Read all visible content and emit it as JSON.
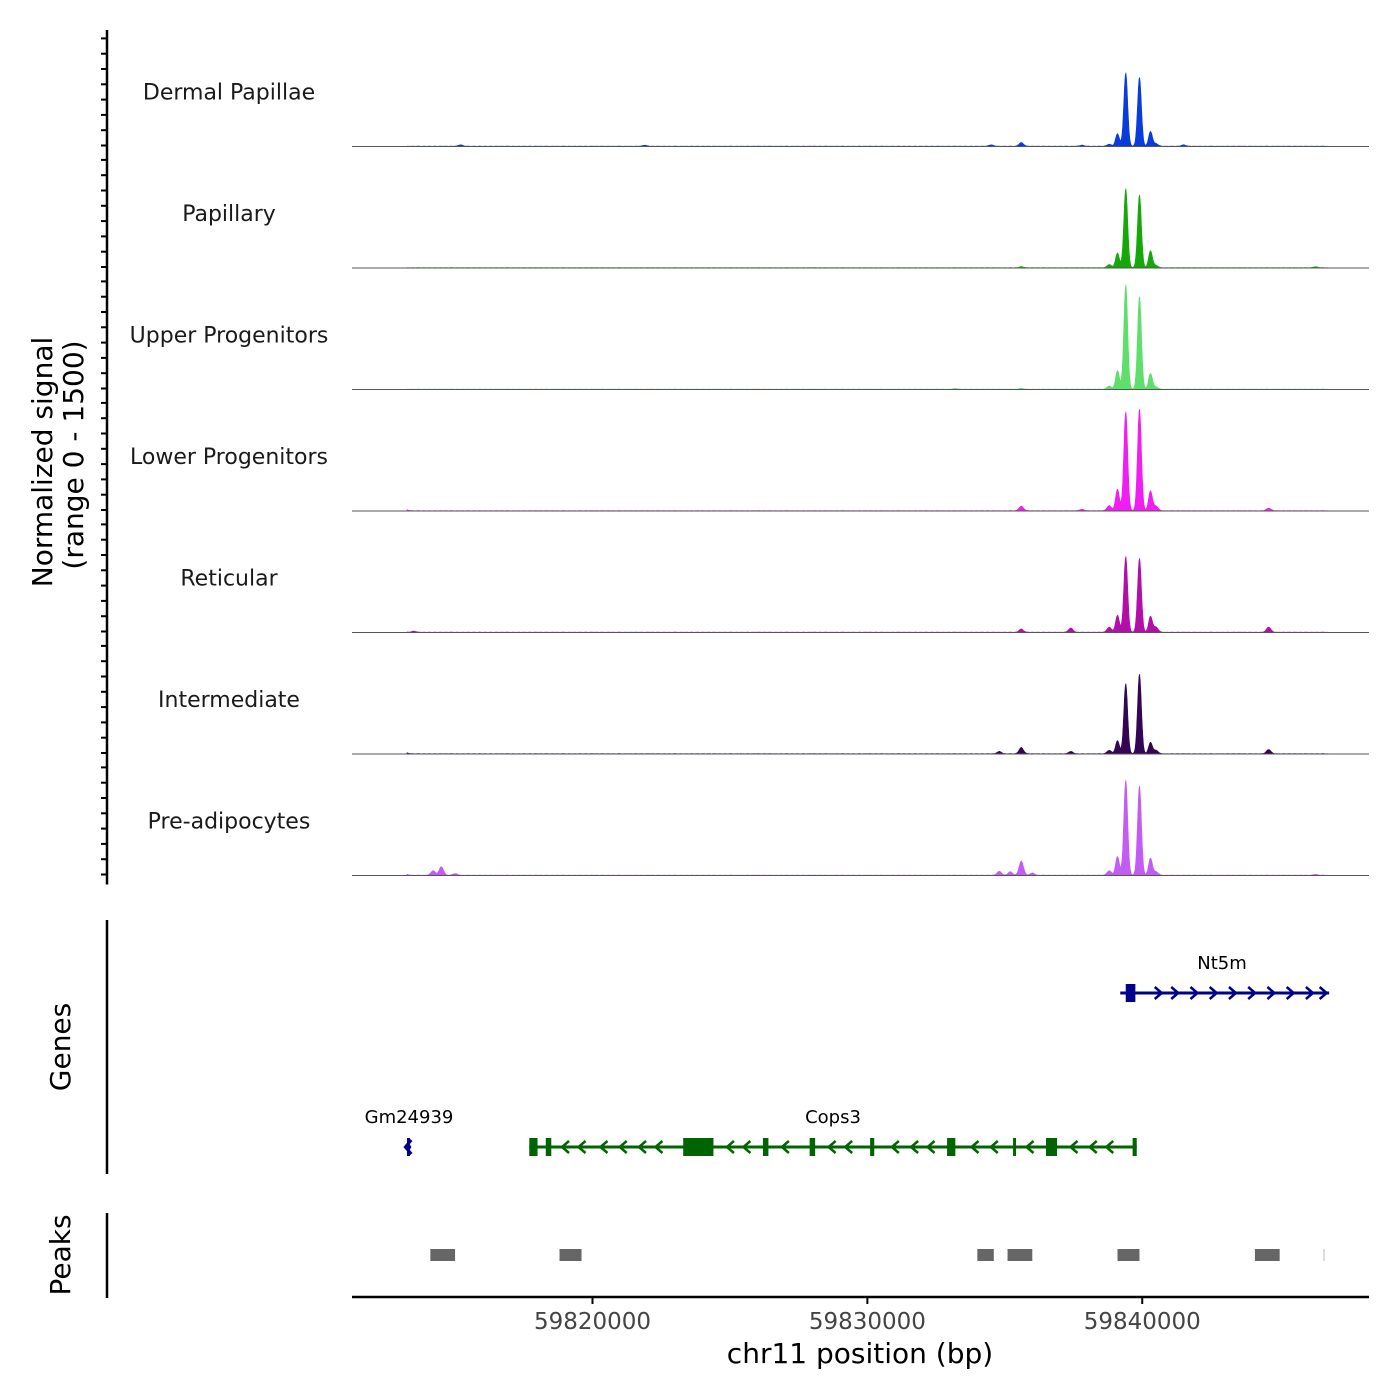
{
  "chart_data": {
    "type": "area",
    "chromosome": "chr11",
    "xlabel": "chr11 position (bp)",
    "xlim": [
      59811250,
      59848250
    ],
    "x_ticks": [
      59820000,
      59830000,
      59840000
    ],
    "x_tick_labels": [
      "59820000",
      "59830000",
      "59840000"
    ],
    "signal_ylabel_line1": "Normalized signal",
    "signal_ylabel_line2": "(range 0 - 1500)",
    "ylim": [
      0,
      1500
    ],
    "tracks": [
      {
        "name": "Dermal Papillae",
        "color": "#0a3bdc",
        "background": [
          [
            59815200,
            25
          ],
          [
            59821900,
            18
          ],
          [
            59834500,
            25
          ],
          [
            59835600,
            65
          ],
          [
            59837800,
            18
          ],
          [
            59838800,
            35
          ],
          [
            59840500,
            45
          ],
          [
            59841500,
            25
          ]
        ],
        "peaks": [
          [
            59839400,
            1300
          ],
          [
            59839900,
            1220
          ],
          [
            59840300,
            260
          ],
          [
            59839100,
            220
          ]
        ]
      },
      {
        "name": "Papillary",
        "color": "#16a80a",
        "background": [
          [
            59835600,
            20
          ],
          [
            59838800,
            55
          ],
          [
            59840500,
            40
          ],
          [
            59846300,
            18
          ]
        ],
        "peaks": [
          [
            59839400,
            1400
          ],
          [
            59839900,
            1290
          ],
          [
            59840300,
            300
          ],
          [
            59839100,
            260
          ]
        ]
      },
      {
        "name": "Upper Progenitors",
        "color": "#5ede6b",
        "background": [
          [
            59835600,
            15
          ],
          [
            59838800,
            55
          ],
          [
            59840500,
            40
          ],
          [
            59833200,
            12
          ]
        ],
        "peaks": [
          [
            59839400,
            1850
          ],
          [
            59839900,
            1640
          ],
          [
            59840300,
            280
          ],
          [
            59839100,
            330
          ]
        ]
      },
      {
        "name": "Lower Progenitors",
        "color": "#f01ef0",
        "background": [
          [
            59813200,
            20
          ],
          [
            59835600,
            80
          ],
          [
            59837800,
            25
          ],
          [
            59838800,
            90
          ],
          [
            59840500,
            80
          ],
          [
            59844600,
            45
          ]
        ],
        "peaks": [
          [
            59839400,
            1750
          ],
          [
            59839900,
            1800
          ],
          [
            59840300,
            350
          ],
          [
            59839100,
            380
          ]
        ]
      },
      {
        "name": "Reticular",
        "color": "#b20fa8",
        "background": [
          [
            59813100,
            25
          ],
          [
            59813500,
            20
          ],
          [
            59835600,
            55
          ],
          [
            59837400,
            75
          ],
          [
            59838800,
            90
          ],
          [
            59840500,
            90
          ],
          [
            59844600,
            90
          ]
        ],
        "peaks": [
          [
            59839400,
            1340
          ],
          [
            59839900,
            1310
          ],
          [
            59840300,
            280
          ],
          [
            59839100,
            300
          ]
        ]
      },
      {
        "name": "Intermediate",
        "color": "#330554",
        "background": [
          [
            59813200,
            20
          ],
          [
            59834800,
            40
          ],
          [
            59835600,
            110
          ],
          [
            59837400,
            40
          ],
          [
            59838800,
            60
          ],
          [
            59840500,
            60
          ],
          [
            59844600,
            75
          ]
        ],
        "peaks": [
          [
            59839400,
            1240
          ],
          [
            59839900,
            1410
          ],
          [
            59840300,
            200
          ],
          [
            59839100,
            230
          ]
        ]
      },
      {
        "name": "Pre-adipocytes",
        "color": "#c35cf5",
        "background": [
          [
            59813200,
            20
          ],
          [
            59814200,
            80
          ],
          [
            59814500,
            150
          ],
          [
            59815000,
            30
          ],
          [
            59834800,
            70
          ],
          [
            59835200,
            60
          ],
          [
            59835600,
            250
          ],
          [
            59836000,
            40
          ],
          [
            59838800,
            80
          ],
          [
            59840500,
            60
          ],
          [
            59846300,
            15
          ]
        ],
        "peaks": [
          [
            59839400,
            1680
          ],
          [
            59839900,
            1580
          ],
          [
            59840300,
            300
          ],
          [
            59839100,
            330
          ]
        ]
      }
    ],
    "genes_label": "Genes",
    "genes": [
      {
        "name": "Nt5m",
        "strand": "+",
        "row": 1,
        "color": "#00008b",
        "start": 59839200,
        "end": 59846800,
        "exons": [
          [
            59839400,
            59839750
          ]
        ],
        "arrows": [
          59840600,
          59841200,
          59841900,
          59842600,
          59843300,
          59844000,
          59844700,
          59845400,
          59846100,
          59846600
        ]
      },
      {
        "name": "Gm24939",
        "strand": "-",
        "row": 2,
        "color": "#00008b",
        "start": 59813200,
        "end": 59813400,
        "exons": [
          [
            59813250,
            59813350
          ]
        ],
        "arrows": []
      },
      {
        "name": "Cops3",
        "strand": "-",
        "row": 2,
        "color": "#006400",
        "start": 59817700,
        "end": 59839800,
        "exons": [
          [
            59817700,
            59818000
          ],
          [
            59818300,
            59818500
          ],
          [
            59823300,
            59824400
          ],
          [
            59826200,
            59826400
          ],
          [
            59827900,
            59828100
          ],
          [
            59830100,
            59830250
          ],
          [
            59832900,
            59833200
          ],
          [
            59835300,
            59835400
          ],
          [
            59836500,
            59836900
          ],
          [
            59839650,
            59839800
          ]
        ],
        "arrows": [
          59819000,
          59819600,
          59820400,
          59821100,
          59821800,
          59822400,
          59825000,
          59825600,
          59827000,
          59828700,
          59829300,
          59831000,
          59831700,
          59832300,
          59833900,
          59834600,
          59835900,
          59837500,
          59838200,
          59838800
        ]
      }
    ],
    "peaks_label": "Peaks",
    "peak_regions": [
      [
        59814100,
        59815000
      ],
      [
        59818800,
        59819600
      ],
      [
        59834000,
        59834600
      ],
      [
        59835100,
        59836000
      ],
      [
        59839100,
        59839900
      ],
      [
        59844100,
        59845000
      ]
    ]
  }
}
